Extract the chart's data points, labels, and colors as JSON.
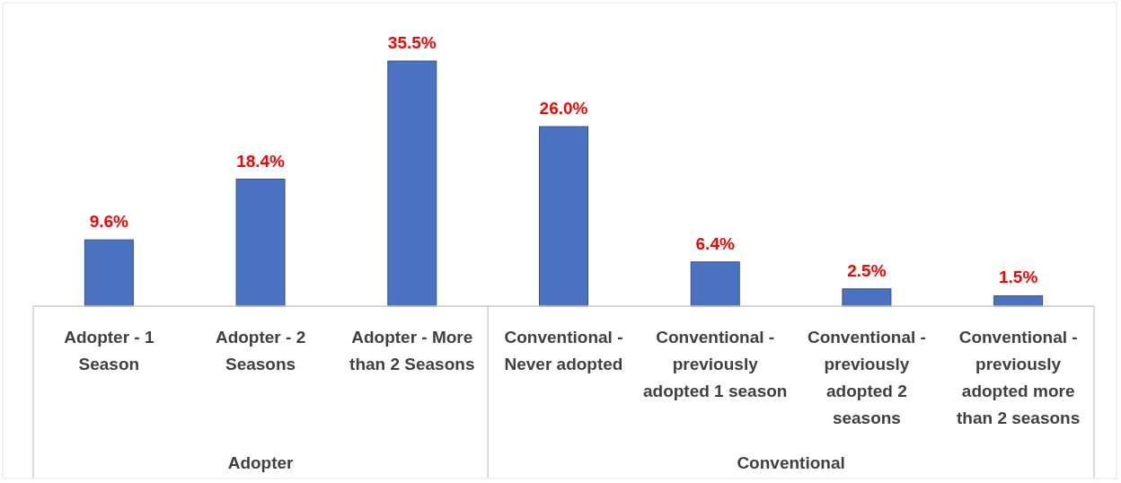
{
  "chart_data": {
    "type": "bar",
    "categories": [
      "Adopter - 1 Season",
      "Adopter - 2 Seasons",
      "Adopter - More than 2 Seasons",
      "Conventional - Never adopted",
      "Conventional - previously adopted 1 season",
      "Conventional - previously adopted 2 seasons",
      "Conventional - previously adopted more than 2 seasons"
    ],
    "values": [
      9.6,
      18.4,
      35.5,
      26.0,
      6.4,
      2.5,
      1.5
    ],
    "value_labels": [
      "9.6%",
      "18.4%",
      "35.5%",
      "26.0%",
      "6.4%",
      "2.5%",
      "1.5%"
    ],
    "color": "#4a72c0",
    "annotations": [
      "Adopter",
      "Conventional"
    ]
  }
}
